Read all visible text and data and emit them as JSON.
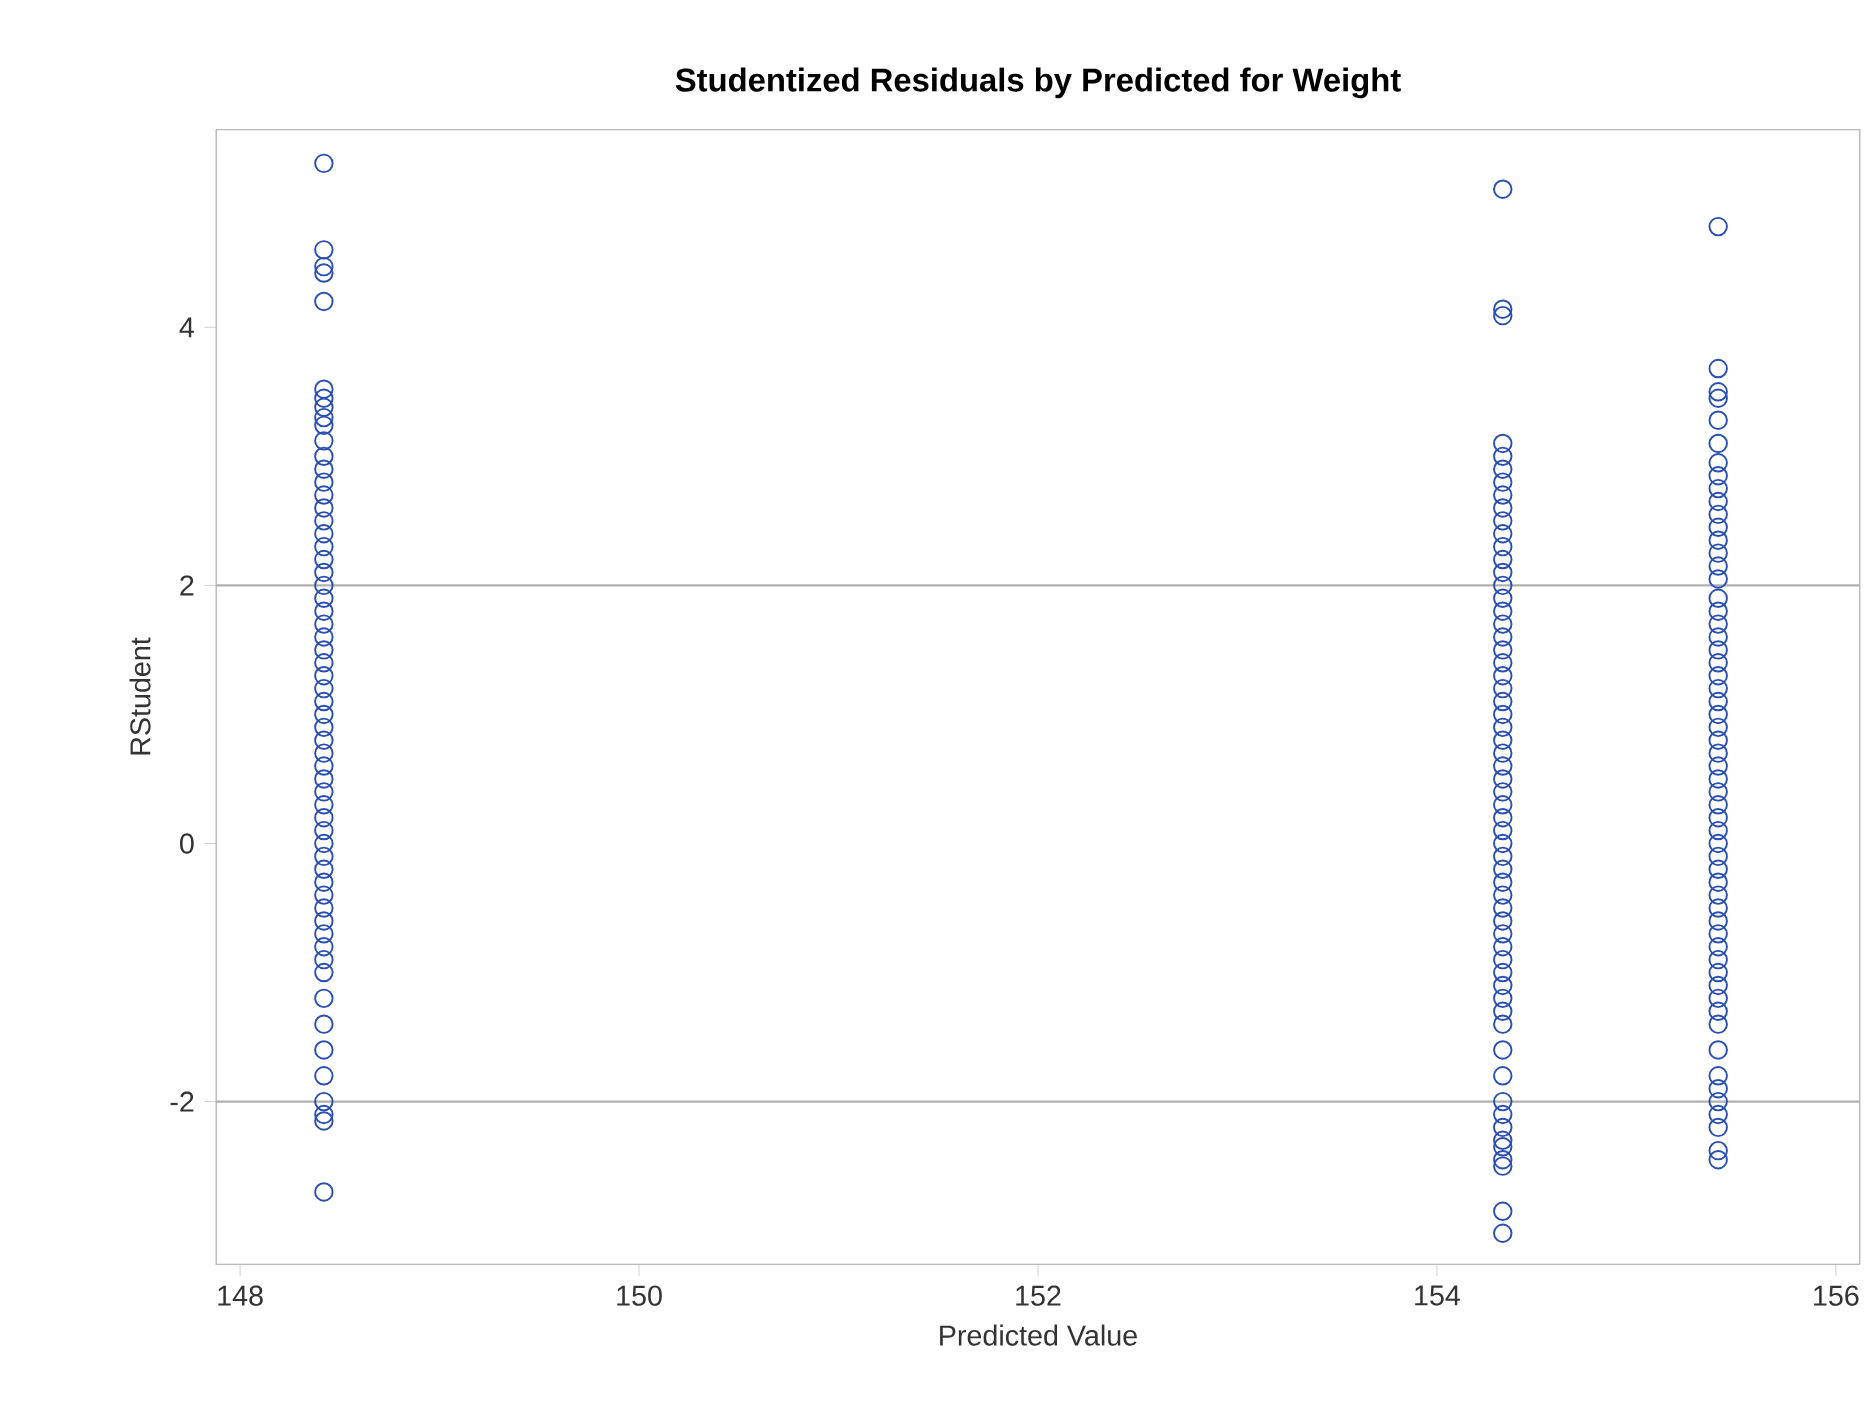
{
  "chart_data": {
    "type": "scatter",
    "title": "Studentized Residuals by Predicted for Weight",
    "xlabel": "Predicted Value",
    "ylabel": "RStudent",
    "xlim": [
      147.88,
      156.12
    ],
    "ylim": [
      -3.26,
      5.53
    ],
    "xticks": [
      148,
      150,
      152,
      154,
      156
    ],
    "yticks": [
      -2,
      0,
      2,
      4
    ],
    "marker": "circle",
    "ref_lines": [
      {
        "axis": "y",
        "value": 2,
        "color": "#b0b0b0"
      },
      {
        "axis": "y",
        "value": -2,
        "color": "#b0b0b0"
      }
    ],
    "series": [
      {
        "color": "#2a4fb0",
        "x": [
          148.42,
          148.42,
          148.42,
          148.42,
          148.42,
          148.42,
          148.42,
          148.42,
          148.42,
          148.42,
          148.42,
          148.42,
          148.42,
          148.42,
          148.42,
          148.42,
          148.42,
          148.42,
          148.42,
          148.42,
          148.42,
          148.42,
          148.42,
          148.42,
          148.42,
          148.42,
          148.42,
          148.42,
          148.42,
          148.42,
          148.42,
          148.42,
          148.42,
          148.42,
          148.42,
          148.42,
          148.42,
          148.42,
          148.42,
          148.42,
          148.42,
          148.42,
          148.42,
          148.42,
          148.42,
          148.42,
          148.42,
          148.42,
          148.42,
          148.42,
          148.42,
          148.42,
          148.42,
          148.42,
          148.42,
          148.42,
          148.42,
          148.42,
          148.42,
          148.42
        ],
        "values": [
          5.27,
          4.6,
          4.47,
          4.42,
          4.2,
          3.52,
          3.45,
          3.38,
          3.3,
          3.24,
          3.12,
          3.0,
          2.9,
          2.8,
          2.7,
          2.6,
          2.5,
          2.4,
          2.3,
          2.2,
          2.1,
          2.0,
          1.9,
          1.8,
          1.7,
          1.6,
          1.5,
          1.4,
          1.3,
          1.2,
          1.1,
          1.0,
          0.9,
          0.8,
          0.7,
          0.6,
          0.5,
          0.4,
          0.3,
          0.2,
          0.1,
          0.0,
          -0.1,
          -0.2,
          -0.3,
          -0.4,
          -0.5,
          -0.6,
          -0.7,
          -0.8,
          -0.9,
          -1.0,
          -1.2,
          -1.4,
          -1.6,
          -1.8,
          -2.0,
          -2.1,
          -2.15,
          -2.7
        ]
      },
      {
        "color": "#2a4fb0",
        "x": [
          154.33,
          154.33,
          154.33,
          154.33,
          154.33,
          154.33,
          154.33,
          154.33,
          154.33,
          154.33,
          154.33,
          154.33,
          154.33,
          154.33,
          154.33,
          154.33,
          154.33,
          154.33,
          154.33,
          154.33,
          154.33,
          154.33,
          154.33,
          154.33,
          154.33,
          154.33,
          154.33,
          154.33,
          154.33,
          154.33,
          154.33,
          154.33,
          154.33,
          154.33,
          154.33,
          154.33,
          154.33,
          154.33,
          154.33,
          154.33,
          154.33,
          154.33,
          154.33,
          154.33,
          154.33,
          154.33,
          154.33,
          154.33,
          154.33,
          154.33,
          154.33,
          154.33,
          154.33,
          154.33,
          154.33,
          154.33,
          154.33,
          154.33,
          154.33,
          154.33
        ],
        "values": [
          5.07,
          4.14,
          4.09,
          3.1,
          3.0,
          2.9,
          2.8,
          2.7,
          2.6,
          2.5,
          2.4,
          2.3,
          2.2,
          2.1,
          2.0,
          1.9,
          1.8,
          1.7,
          1.6,
          1.5,
          1.4,
          1.3,
          1.2,
          1.1,
          1.0,
          0.9,
          0.8,
          0.7,
          0.6,
          0.5,
          0.4,
          0.3,
          0.2,
          0.1,
          0.0,
          -0.1,
          -0.2,
          -0.3,
          -0.4,
          -0.5,
          -0.6,
          -0.7,
          -0.8,
          -0.9,
          -1.0,
          -1.2,
          -1.4,
          -1.6,
          -1.8,
          -2.0,
          -2.1,
          -2.2,
          -2.3,
          -2.35,
          -2.45,
          -2.5,
          -2.85,
          -3.02,
          -1.1,
          -1.3
        ]
      },
      {
        "color": "#2a4fb0",
        "x": [
          155.41,
          155.41,
          155.41,
          155.41,
          155.41,
          155.41,
          155.41,
          155.41,
          155.41,
          155.41,
          155.41,
          155.41,
          155.41,
          155.41,
          155.41,
          155.41,
          155.41,
          155.41,
          155.41,
          155.41,
          155.41,
          155.41,
          155.41,
          155.41,
          155.41,
          155.41,
          155.41,
          155.41,
          155.41,
          155.41,
          155.41,
          155.41,
          155.41,
          155.41,
          155.41,
          155.41,
          155.41,
          155.41,
          155.41,
          155.41,
          155.41,
          155.41,
          155.41,
          155.41,
          155.41,
          155.41,
          155.41,
          155.41,
          155.41,
          155.41,
          155.41,
          155.41,
          155.41,
          155.41,
          155.41,
          155.41,
          155.41,
          155.41
        ],
        "values": [
          4.78,
          3.68,
          3.5,
          3.45,
          3.28,
          3.1,
          2.95,
          2.85,
          2.75,
          2.65,
          2.55,
          2.45,
          2.35,
          2.25,
          2.15,
          2.05,
          1.9,
          1.8,
          1.7,
          1.6,
          1.5,
          1.4,
          1.3,
          1.2,
          1.1,
          1.0,
          0.9,
          0.8,
          0.7,
          0.6,
          0.5,
          0.4,
          0.3,
          0.2,
          0.1,
          0.0,
          -0.1,
          -0.2,
          -0.3,
          -0.4,
          -0.5,
          -0.6,
          -0.7,
          -0.8,
          -0.9,
          -1.0,
          -1.2,
          -1.4,
          -1.6,
          -1.8,
          -1.9,
          -2.0,
          -2.1,
          -2.2,
          -2.38,
          -2.45,
          -1.1,
          -1.3
        ]
      }
    ]
  }
}
